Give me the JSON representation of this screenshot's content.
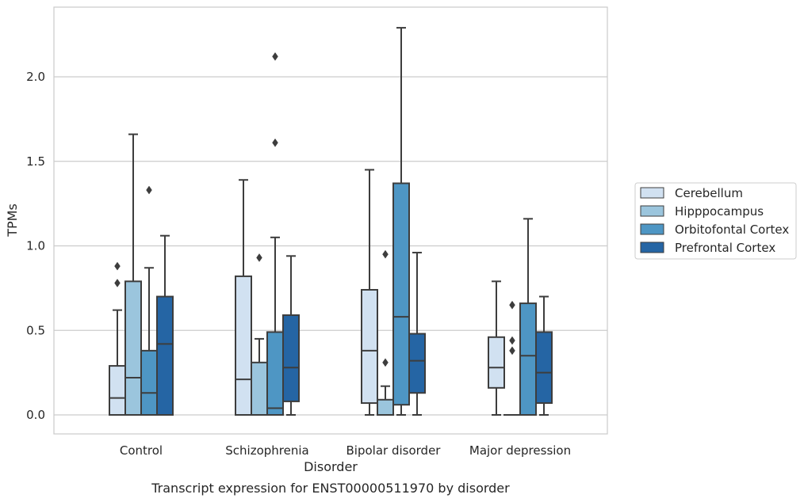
{
  "chart_data": {
    "type": "box",
    "xlabel": "Disorder",
    "ylabel": "TPMs",
    "caption": "Transcript expression for ENST00000511970 by disorder",
    "ylim": [
      -0.11,
      2.43
    ],
    "yticks": [
      "0.0",
      "0.5",
      "1.0",
      "1.5",
      "2.0"
    ],
    "ytick_values": [
      0,
      0.5,
      1.0,
      1.5,
      2.0
    ],
    "grid": "horizontal",
    "legend_position": "right",
    "categories": [
      "Control",
      "Schizophrenia",
      "Bipolar disorder",
      "Major depression"
    ],
    "series": [
      {
        "name": "Cerebellum",
        "color": "#d1e1f1",
        "boxes": [
          {
            "whisker_low": 0,
            "q1": 0,
            "median": 0.1,
            "q3": 0.29,
            "whisker_high": 0.62,
            "outliers": [
              0.78,
              0.88
            ]
          },
          {
            "whisker_low": 0,
            "q1": 0,
            "median": 0.21,
            "q3": 0.82,
            "whisker_high": 1.39,
            "outliers": []
          },
          {
            "whisker_low": 0,
            "q1": 0.07,
            "median": 0.38,
            "q3": 0.74,
            "whisker_high": 1.45,
            "outliers": []
          },
          {
            "whisker_low": 0,
            "q1": 0.16,
            "median": 0.28,
            "q3": 0.46,
            "whisker_high": 0.79,
            "outliers": []
          }
        ]
      },
      {
        "name": "Hipppocampus",
        "color": "#9bc5dd",
        "boxes": [
          {
            "whisker_low": 0,
            "q1": 0,
            "median": 0.22,
            "q3": 0.79,
            "whisker_high": 1.66,
            "outliers": []
          },
          {
            "whisker_low": 0,
            "q1": 0,
            "median": 0,
            "q3": 0.31,
            "whisker_high": 0.45,
            "outliers": [
              0.93
            ]
          },
          {
            "whisker_low": 0,
            "q1": 0,
            "median": 0,
            "q3": 0.09,
            "whisker_high": 0.17,
            "outliers": [
              0.31,
              0.95
            ]
          },
          {
            "whisker_low": 0,
            "q1": 0,
            "median": 0,
            "q3": 0,
            "whisker_high": 0,
            "outliers": [
              0.38,
              0.44,
              0.65
            ]
          }
        ]
      },
      {
        "name": "Orbitofontal Cortex",
        "color": "#4e96c4",
        "boxes": [
          {
            "whisker_low": 0,
            "q1": 0,
            "median": 0.13,
            "q3": 0.38,
            "whisker_high": 0.87,
            "outliers": [
              1.33
            ]
          },
          {
            "whisker_low": 0,
            "q1": 0,
            "median": 0.04,
            "q3": 0.49,
            "whisker_high": 1.05,
            "outliers": [
              1.61,
              2.12
            ]
          },
          {
            "whisker_low": 0,
            "q1": 0.06,
            "median": 0.58,
            "q3": 1.37,
            "whisker_high": 2.29,
            "outliers": []
          },
          {
            "whisker_low": 0,
            "q1": 0,
            "median": 0.35,
            "q3": 0.66,
            "whisker_high": 1.16,
            "outliers": []
          }
        ]
      },
      {
        "name": "Prefrontal Cortex",
        "color": "#2565a4",
        "boxes": [
          {
            "whisker_low": 0,
            "q1": 0,
            "median": 0.42,
            "q3": 0.7,
            "whisker_high": 1.06,
            "outliers": []
          },
          {
            "whisker_low": 0,
            "q1": 0.08,
            "median": 0.28,
            "q3": 0.59,
            "whisker_high": 0.94,
            "outliers": []
          },
          {
            "whisker_low": 0,
            "q1": 0.13,
            "median": 0.32,
            "q3": 0.48,
            "whisker_high": 0.96,
            "outliers": []
          },
          {
            "whisker_low": 0,
            "q1": 0.07,
            "median": 0.25,
            "q3": 0.49,
            "whisker_high": 0.7,
            "outliers": []
          }
        ]
      }
    ]
  }
}
